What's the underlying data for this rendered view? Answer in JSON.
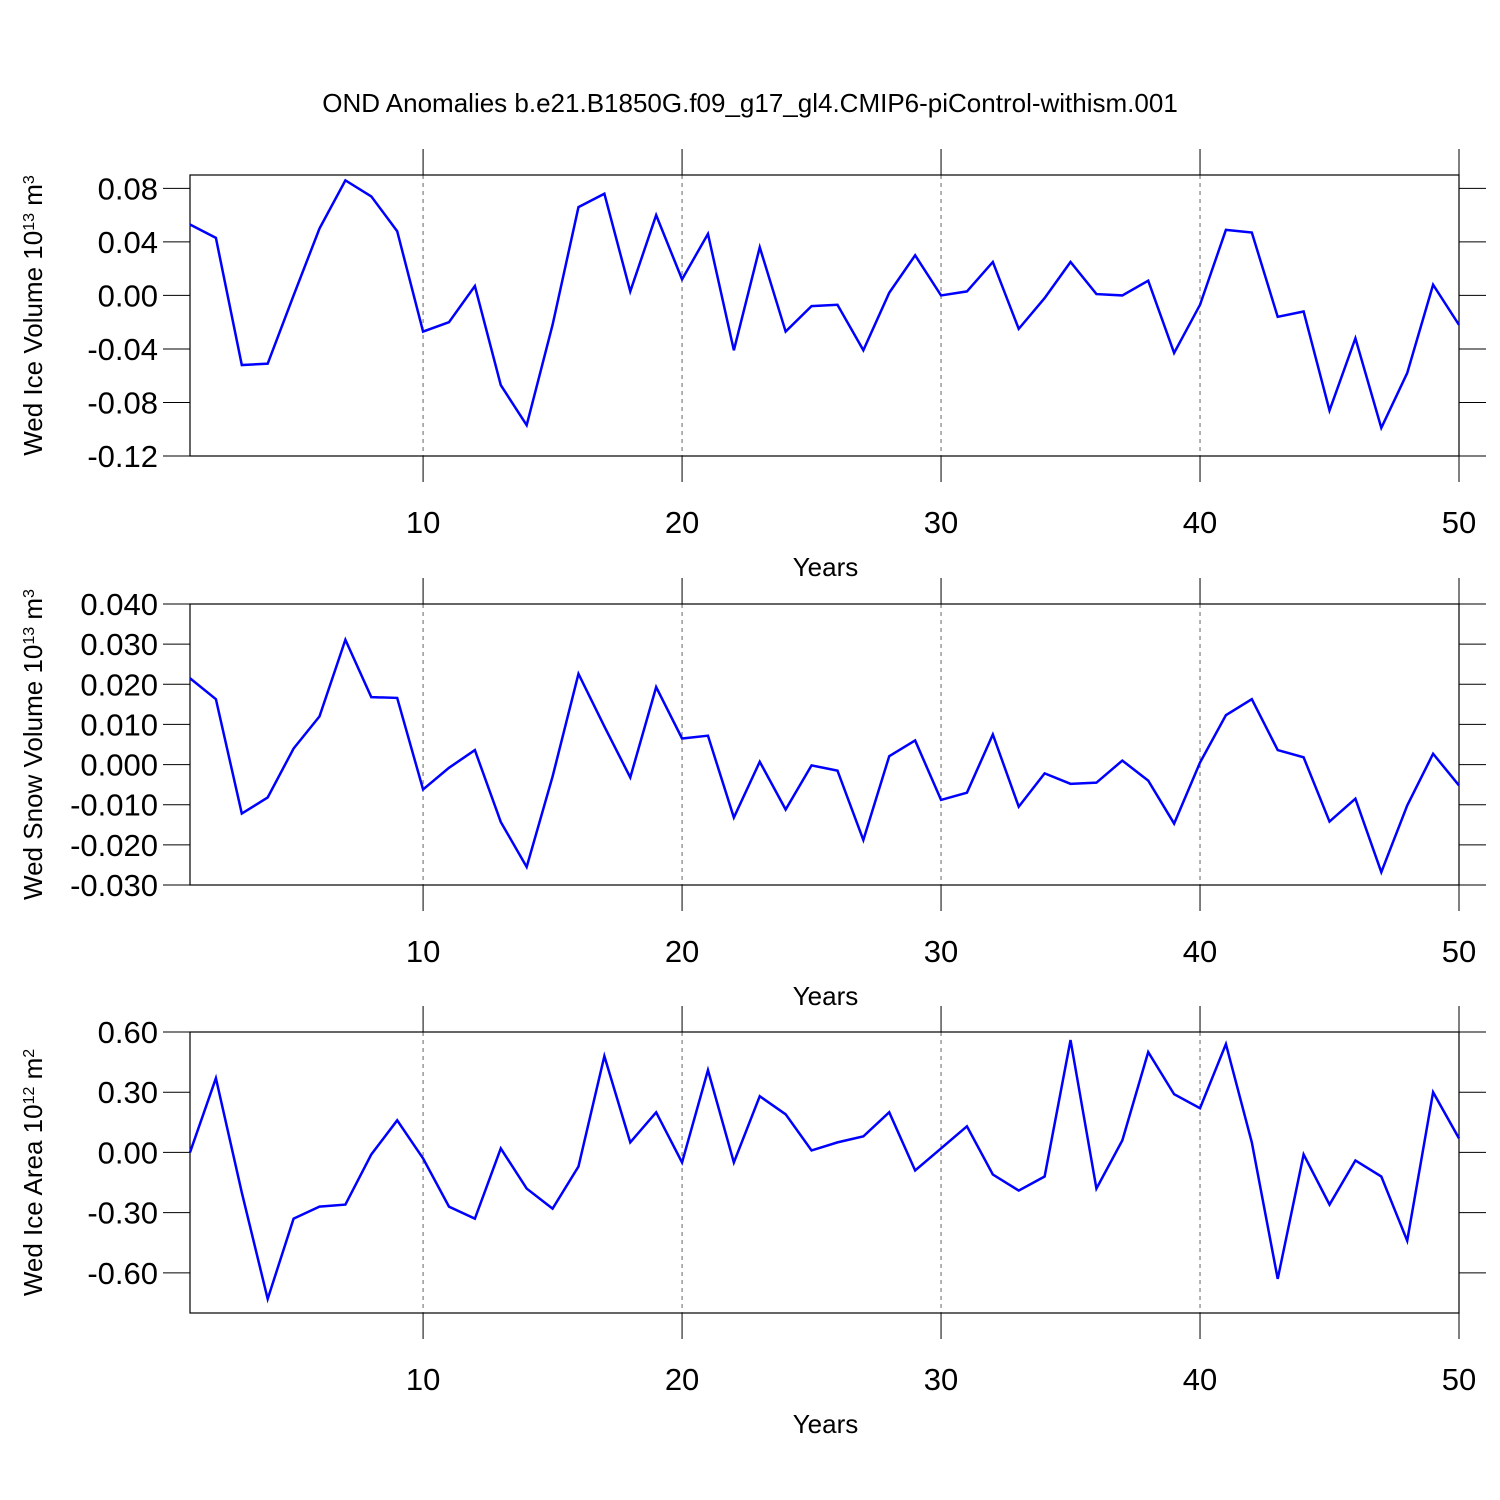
{
  "title": "OND Anomalies b.e21.B1850G.f09_g17_gl4.CMIP6-piControl-withism.001",
  "chart_data": [
    {
      "type": "line",
      "xlabel": "Years",
      "ylabel": [
        "Wed Ice Volume 10",
        "13",
        " m",
        "3"
      ],
      "color": "#0000ff",
      "grid": true,
      "xlim": [
        1,
        50
      ],
      "xticks": [
        10,
        20,
        30,
        40,
        50
      ],
      "ylim": [
        -0.12,
        0.09
      ],
      "yticks": [
        -0.12,
        -0.08,
        -0.04,
        {
          "value": 0,
          "label": "0.00"
        },
        0.04,
        0.08
      ],
      "x": [
        1,
        2,
        3,
        4,
        5,
        6,
        7,
        8,
        9,
        10,
        11,
        12,
        13,
        14,
        15,
        16,
        17,
        18,
        19,
        20,
        21,
        22,
        23,
        24,
        25,
        26,
        27,
        28,
        29,
        30,
        31,
        32,
        33,
        34,
        35,
        36,
        37,
        38,
        39,
        40,
        41,
        42,
        43,
        44,
        45,
        46,
        47,
        48,
        49,
        50
      ],
      "values": [
        0.053,
        0.043,
        -0.052,
        -0.051,
        0.0,
        0.05,
        0.086,
        0.074,
        0.048,
        -0.027,
        -0.02,
        0.007,
        -0.067,
        -0.097,
        -0.022,
        0.066,
        0.076,
        0.003,
        0.06,
        0.012,
        0.046,
        -0.041,
        0.036,
        -0.027,
        -0.008,
        -0.007,
        -0.041,
        0.002,
        0.03,
        0.0,
        0.003,
        0.025,
        -0.025,
        -0.002,
        0.025,
        0.001,
        0.0,
        0.011,
        -0.043,
        -0.007,
        0.049,
        0.047,
        -0.016,
        -0.012,
        -0.086,
        -0.032,
        -0.099,
        -0.058,
        0.008,
        -0.022
      ]
    },
    {
      "type": "line",
      "xlabel": "Years",
      "ylabel": [
        "Wed Snow Volume 10",
        "13",
        " m",
        "3"
      ],
      "color": "#0000ff",
      "grid": true,
      "xlim": [
        1,
        50
      ],
      "xticks": [
        10,
        20,
        30,
        40,
        50
      ],
      "ylim": [
        -0.03,
        0.04
      ],
      "yticks": [
        {
          "value": -0.03,
          "label": "-0.030"
        },
        {
          "value": -0.02,
          "label": "-0.020"
        },
        {
          "value": -0.01,
          "label": "-0.010"
        },
        {
          "value": 0,
          "label": "0.000"
        },
        {
          "value": 0.01,
          "label": "0.010"
        },
        {
          "value": 0.02,
          "label": "0.020"
        },
        {
          "value": 0.03,
          "label": "0.030"
        },
        {
          "value": 0.04,
          "label": "0.040"
        }
      ],
      "x": [
        1,
        2,
        3,
        4,
        5,
        6,
        7,
        8,
        9,
        10,
        11,
        12,
        13,
        14,
        15,
        16,
        17,
        18,
        19,
        20,
        21,
        22,
        23,
        24,
        25,
        26,
        27,
        28,
        29,
        30,
        31,
        32,
        33,
        34,
        35,
        36,
        37,
        38,
        39,
        40,
        41,
        42,
        43,
        44,
        45,
        46,
        47,
        48,
        49,
        50
      ],
      "values": [
        0.0215,
        0.0163,
        -0.0122,
        -0.0082,
        0.004,
        0.012,
        0.0311,
        0.0168,
        0.0166,
        -0.0062,
        -0.0008,
        0.0036,
        -0.0143,
        -0.0255,
        -0.003,
        0.0226,
        0.0095,
        -0.0032,
        0.0193,
        0.0065,
        0.0072,
        -0.0132,
        0.0007,
        -0.0112,
        -0.0002,
        -0.0015,
        -0.0188,
        0.0021,
        0.006,
        -0.0088,
        -0.007,
        0.0075,
        -0.0105,
        -0.0022,
        -0.0048,
        -0.0045,
        0.001,
        -0.004,
        -0.0147,
        0.0005,
        0.0123,
        0.0163,
        0.0036,
        0.0018,
        -0.0142,
        -0.0085,
        -0.0268,
        -0.0102,
        0.0027,
        -0.0052
      ]
    },
    {
      "type": "line",
      "xlabel": "Years",
      "ylabel": [
        "Wed Ice Area 10",
        "12",
        " m",
        "2"
      ],
      "color": "#0000ff",
      "grid": true,
      "xlim": [
        1,
        50
      ],
      "xticks": [
        10,
        20,
        30,
        40,
        50
      ],
      "ylim": [
        -0.8,
        0.6
      ],
      "yticks": [
        {
          "value": -0.6,
          "label": "-0.60"
        },
        {
          "value": -0.3,
          "label": "-0.30"
        },
        {
          "value": 0,
          "label": "0.00"
        },
        {
          "value": 0.3,
          "label": "0.30"
        },
        {
          "value": 0.6,
          "label": "0.60"
        }
      ],
      "x": [
        1,
        2,
        3,
        4,
        5,
        6,
        7,
        8,
        9,
        10,
        11,
        12,
        13,
        14,
        15,
        16,
        17,
        18,
        19,
        20,
        21,
        22,
        23,
        24,
        25,
        26,
        27,
        28,
        29,
        30,
        31,
        32,
        33,
        34,
        35,
        36,
        37,
        38,
        39,
        40,
        41,
        42,
        43,
        44,
        45,
        46,
        47,
        48,
        49,
        50
      ],
      "values": [
        0.0,
        0.37,
        -0.2,
        -0.73,
        -0.33,
        -0.27,
        -0.26,
        -0.01,
        0.16,
        -0.03,
        -0.27,
        -0.33,
        0.02,
        -0.18,
        -0.28,
        -0.07,
        0.48,
        0.05,
        0.2,
        -0.05,
        0.41,
        -0.05,
        0.28,
        0.19,
        0.01,
        0.05,
        0.08,
        0.2,
        -0.09,
        0.02,
        0.13,
        -0.11,
        -0.19,
        -0.12,
        0.56,
        -0.18,
        0.06,
        0.5,
        0.29,
        0.22,
        0.54,
        0.05,
        -0.63,
        -0.01,
        -0.26,
        -0.04,
        -0.12,
        -0.44,
        0.3,
        0.07
      ]
    }
  ]
}
